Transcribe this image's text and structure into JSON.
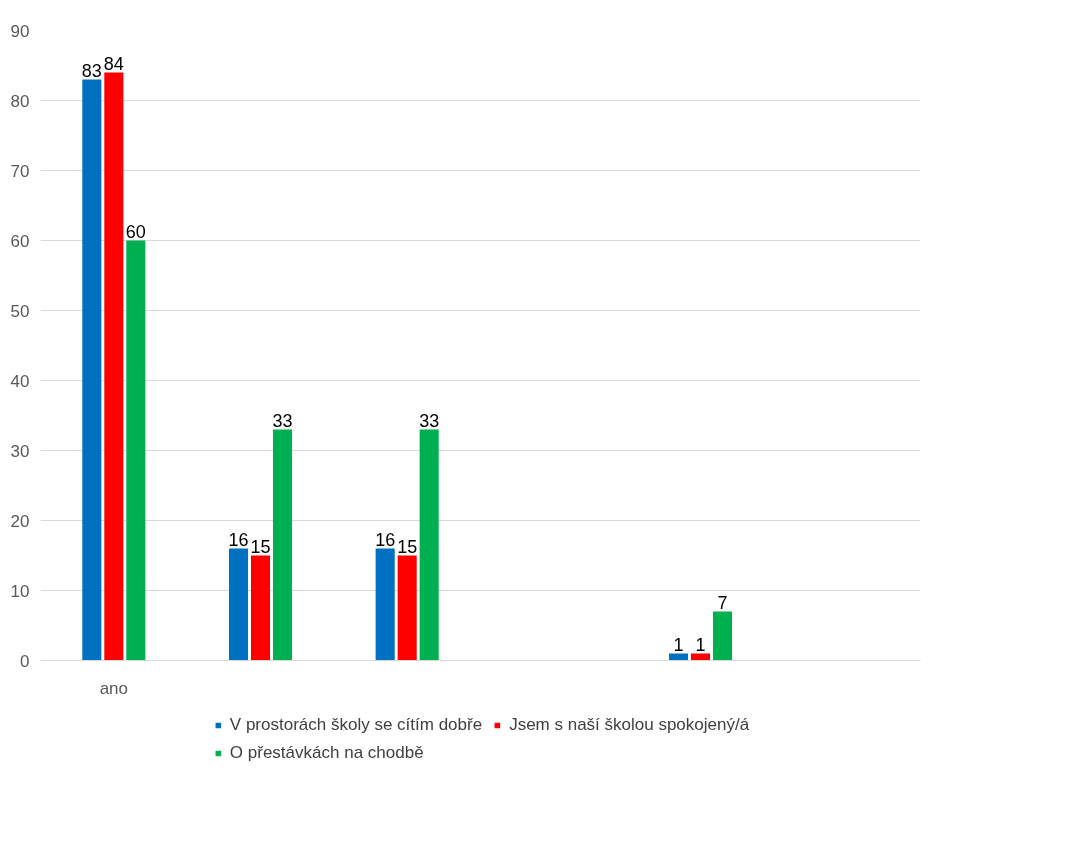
{
  "chart_data": {
    "type": "bar",
    "categories": [
      "ano",
      null,
      null,
      null,
      null,
      null
    ],
    "series": [
      {
        "name": "V prostorách školy se cítím dobře",
        "color": "#0070c0",
        "values": [
          83,
          16,
          16,
          null,
          1,
          null
        ]
      },
      {
        "name": "Jsem s naší školou spokojený/á",
        "color": "#ff0000",
        "values": [
          84,
          15,
          15,
          null,
          1,
          null
        ]
      },
      {
        "name": "O přestávkách na chodbě",
        "color": "#00b050",
        "values": [
          60,
          33,
          33,
          null,
          7,
          null
        ]
      }
    ],
    "ylim": [
      0,
      90
    ],
    "yticks": [
      0,
      10,
      20,
      30,
      40,
      50,
      60,
      70,
      80,
      90
    ],
    "grid": "y",
    "legend": "bottom",
    "data_labels": true
  }
}
